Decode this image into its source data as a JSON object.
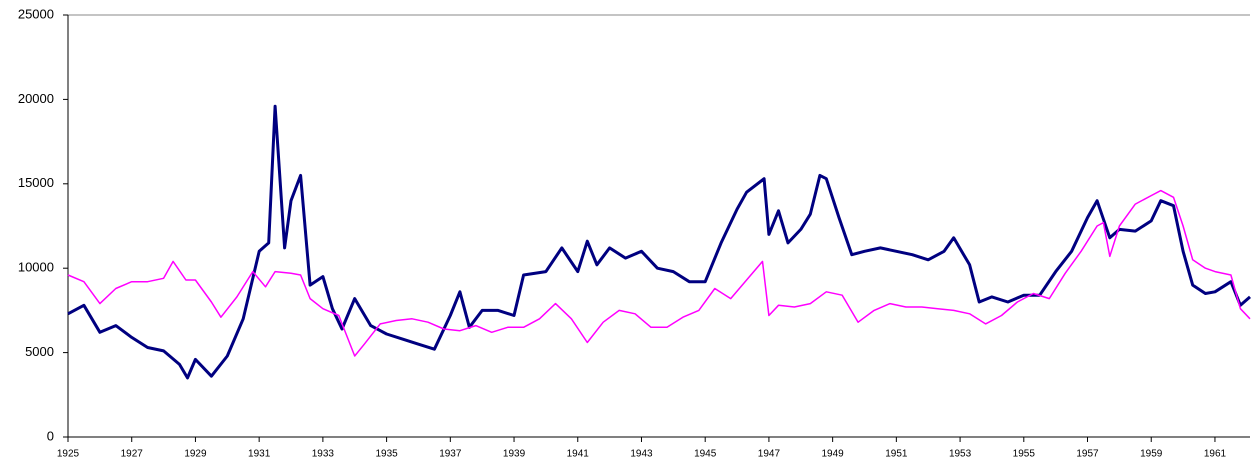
{
  "chart_data": {
    "type": "line",
    "xlim": [
      1925,
      1962.1
    ],
    "xticks": [
      1925,
      1927,
      1929,
      1931,
      1933,
      1935,
      1937,
      1939,
      1941,
      1943,
      1945,
      1947,
      1949,
      1951,
      1953,
      1955,
      1957,
      1959,
      1961
    ],
    "ylim": [
      0,
      25000
    ],
    "yticks": [
      0,
      5000,
      10000,
      15000,
      20000,
      25000
    ],
    "grid": false,
    "series": [
      {
        "color": "#000080",
        "x": [
          1925,
          1925.5,
          1926,
          1926.5,
          1927,
          1927.5,
          1928,
          1928.5,
          1928.75,
          1929,
          1929.5,
          1930,
          1930.5,
          1931,
          1931.3,
          1931.5,
          1931.8,
          1932,
          1932.3,
          1932.6,
          1933,
          1933.3,
          1933.6,
          1934,
          1934.5,
          1935,
          1935.5,
          1936,
          1936.5,
          1937,
          1937.3,
          1937.6,
          1938,
          1938.5,
          1939,
          1939.3,
          1940,
          1940.5,
          1941,
          1941.3,
          1941.6,
          1942,
          1942.5,
          1943,
          1943.5,
          1944,
          1944.5,
          1945,
          1945.5,
          1946,
          1946.3,
          1946.85,
          1947,
          1947.3,
          1947.6,
          1948,
          1948.3,
          1948.6,
          1948.8,
          1949.2,
          1949.6,
          1950,
          1950.5,
          1951,
          1951.5,
          1952,
          1952.5,
          1952.8,
          1953.3,
          1953.6,
          1954,
          1954.5,
          1955,
          1955.5,
          1956,
          1956.5,
          1957,
          1957.3,
          1957.7,
          1958,
          1958.5,
          1959,
          1959.3,
          1959.7,
          1960,
          1960.3,
          1960.7,
          1961,
          1961.5,
          1961.8,
          1962.1
        ],
        "values": [
          7300,
          7800,
          6200,
          6600,
          5900,
          5300,
          5100,
          4300,
          3500,
          4600,
          3600,
          4800,
          7000,
          11000,
          11500,
          19600,
          11200,
          14000,
          15500,
          9000,
          9500,
          7600,
          6400,
          8200,
          6600,
          6100,
          5800,
          5500,
          5200,
          7200,
          8600,
          6500,
          7500,
          7500,
          7200,
          9600,
          9800,
          11200,
          9800,
          11600,
          10200,
          11200,
          10600,
          11000,
          10000,
          9800,
          9200,
          9200,
          11500,
          13500,
          14500,
          15300,
          12000,
          13400,
          11500,
          12300,
          13200,
          15500,
          15300,
          13000,
          10800,
          11000,
          11200,
          11000,
          10800,
          10500,
          11000,
          11800,
          10200,
          8000,
          8300,
          8000,
          8400,
          8400,
          9800,
          11000,
          13000,
          14000,
          11800,
          12300,
          12200,
          12800,
          14000,
          13700,
          11000,
          9000,
          8500,
          8600,
          9200,
          7800,
          8300
        ]
      },
      {
        "color": "#ff00ff",
        "x": [
          1925,
          1925.5,
          1926,
          1926.5,
          1927,
          1927.5,
          1928,
          1928.3,
          1928.7,
          1929,
          1929.5,
          1929.8,
          1930.3,
          1930.8,
          1931.2,
          1931.5,
          1932,
          1932.3,
          1932.6,
          1933,
          1933.5,
          1934,
          1934.3,
          1934.8,
          1935.3,
          1935.8,
          1936.3,
          1936.8,
          1937.3,
          1937.8,
          1938.3,
          1938.8,
          1939.3,
          1939.8,
          1940.3,
          1940.8,
          1941.3,
          1941.8,
          1942.3,
          1942.8,
          1943.3,
          1943.8,
          1944.3,
          1944.8,
          1945.3,
          1945.8,
          1946.3,
          1946.8,
          1947,
          1947.3,
          1947.8,
          1948.3,
          1948.8,
          1949.3,
          1949.8,
          1950.3,
          1950.8,
          1951.3,
          1951.8,
          1952.3,
          1952.8,
          1953.3,
          1953.8,
          1954.3,
          1954.8,
          1955.3,
          1955.8,
          1956.3,
          1956.8,
          1957.3,
          1957.5,
          1957.7,
          1958,
          1958.5,
          1959,
          1959.3,
          1959.7,
          1960,
          1960.3,
          1960.7,
          1961,
          1961.5,
          1961.8,
          1962.1
        ],
        "values": [
          9600,
          9200,
          7900,
          8800,
          9200,
          9200,
          9400,
          10400,
          9300,
          9300,
          8000,
          7100,
          8300,
          9800,
          8900,
          9800,
          9700,
          9600,
          8200,
          7600,
          7200,
          4800,
          5500,
          6700,
          6900,
          7000,
          6800,
          6400,
          6300,
          6600,
          6200,
          6500,
          6500,
          7000,
          7900,
          7000,
          5600,
          6800,
          7500,
          7300,
          6500,
          6500,
          7100,
          7500,
          8800,
          8200,
          9300,
          10400,
          7200,
          7800,
          7700,
          7900,
          8600,
          8400,
          6800,
          7500,
          7900,
          7700,
          7700,
          7600,
          7500,
          7300,
          6700,
          7200,
          8000,
          8500,
          8200,
          9700,
          11000,
          12500,
          12700,
          10700,
          12500,
          13800,
          14300,
          14600,
          14200,
          12500,
          10500,
          10000,
          9800,
          9600,
          7600,
          7000
        ]
      }
    ]
  }
}
